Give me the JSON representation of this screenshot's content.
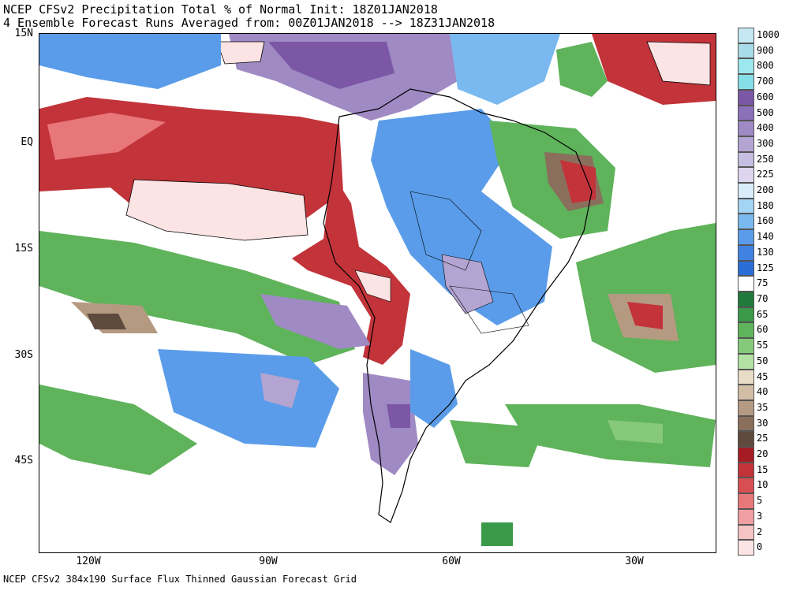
{
  "title": {
    "line1": "NCEP CFSv2 Precipitation Total % of Normal Init: 18Z01JAN2018",
    "line2": "4 Ensemble Forecast Runs Averaged from: 00Z01JAN2018 --> 18Z31JAN2018"
  },
  "footer": "NCEP CFSv2 384x190 Surface Flux Thinned Gaussian Forecast Grid",
  "axes": {
    "y_labels": [
      "15N",
      "EQ",
      "15S",
      "30S",
      "45S"
    ],
    "x_labels": [
      "120W",
      "90W",
      "60W",
      "30W"
    ]
  },
  "legend": {
    "labels": [
      "1000",
      "900",
      "800",
      "700",
      "600",
      "500",
      "400",
      "300",
      "250",
      "225",
      "200",
      "180",
      "160",
      "140",
      "130",
      "125",
      "75",
      "70",
      "65",
      "60",
      "55",
      "50",
      "45",
      "40",
      "35",
      "30",
      "25",
      "20",
      "15",
      "10",
      "5",
      "3",
      "2",
      "0"
    ],
    "colors": [
      "#c6e8f2",
      "#a9dce9",
      "#9de7ee",
      "#86dfe6",
      "#7b57a6",
      "#8a71b8",
      "#9f8ac4",
      "#b3a4d2",
      "#c6bfe1",
      "#ddd6ee",
      "#d9ecf9",
      "#a4d4f4",
      "#79b9ef",
      "#5a9ce9",
      "#3f82e0",
      "#2a6dd6",
      "#ffffff",
      "#217a3c",
      "#3a9a4a",
      "#5fb35b",
      "#86c97b",
      "#b3e1a4",
      "#e8dcc7",
      "#d2bea4",
      "#b59a82",
      "#8a6f5c",
      "#5f4a3e",
      "#a61c24",
      "#c2333a",
      "#d84e52",
      "#e8777a",
      "#f0a0a2",
      "#f6c3c4",
      "#fde4e4"
    ]
  }
}
